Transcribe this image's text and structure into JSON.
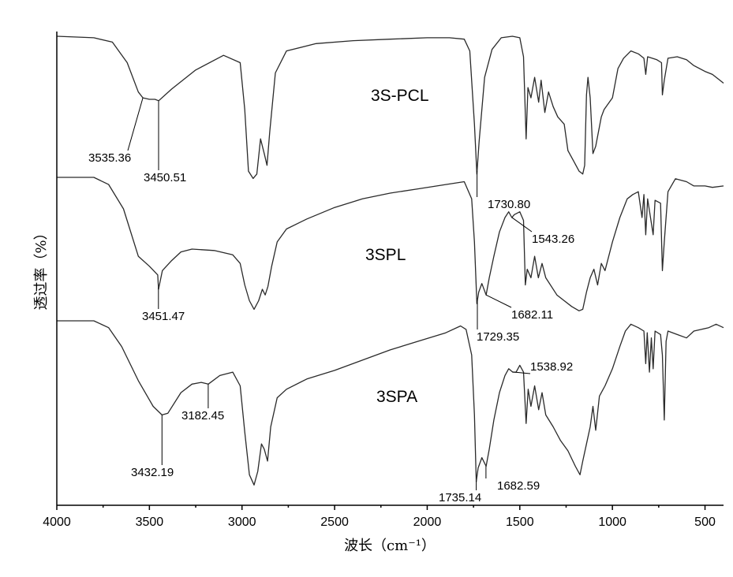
{
  "chart_data": {
    "type": "line",
    "xlabel": "波长（cm⁻¹）",
    "ylabel": "透过率（%）",
    "xlim": [
      4000,
      400
    ],
    "x_reversed": true,
    "x_ticks": [
      4000,
      3500,
      3000,
      2500,
      2000,
      1500,
      1000,
      500
    ],
    "grid": false,
    "legend": "none",
    "series": [
      {
        "name": "3S-PCL",
        "points": [
          [
            4000,
            100
          ],
          [
            3800,
            99
          ],
          [
            3700,
            96
          ],
          [
            3620,
            82
          ],
          [
            3560,
            62
          ],
          [
            3535,
            58
          ],
          [
            3500,
            57
          ],
          [
            3470,
            57
          ],
          [
            3450,
            56
          ],
          [
            3380,
            64
          ],
          [
            3250,
            77
          ],
          [
            3100,
            87
          ],
          [
            3010,
            82
          ],
          [
            2985,
            50
          ],
          [
            2965,
            8
          ],
          [
            2940,
            3
          ],
          [
            2920,
            6
          ],
          [
            2900,
            30
          ],
          [
            2880,
            20
          ],
          [
            2865,
            12
          ],
          [
            2850,
            35
          ],
          [
            2820,
            75
          ],
          [
            2760,
            90
          ],
          [
            2600,
            95
          ],
          [
            2400,
            97
          ],
          [
            2200,
            98
          ],
          [
            2000,
            99
          ],
          [
            1880,
            99
          ],
          [
            1800,
            98
          ],
          [
            1770,
            90
          ],
          [
            1745,
            40
          ],
          [
            1732,
            6
          ],
          [
            1720,
            28
          ],
          [
            1690,
            72
          ],
          [
            1650,
            91
          ],
          [
            1600,
            99
          ],
          [
            1540,
            100
          ],
          [
            1500,
            99
          ],
          [
            1480,
            86
          ],
          [
            1466,
            30
          ],
          [
            1456,
            65
          ],
          [
            1440,
            58
          ],
          [
            1420,
            72
          ],
          [
            1398,
            55
          ],
          [
            1385,
            70
          ],
          [
            1365,
            48
          ],
          [
            1345,
            62
          ],
          [
            1320,
            52
          ],
          [
            1295,
            45
          ],
          [
            1260,
            40
          ],
          [
            1240,
            22
          ],
          [
            1210,
            15
          ],
          [
            1180,
            8
          ],
          [
            1160,
            6
          ],
          [
            1150,
            12
          ],
          [
            1140,
            60
          ],
          [
            1132,
            72
          ],
          [
            1120,
            58
          ],
          [
            1105,
            20
          ],
          [
            1090,
            25
          ],
          [
            1060,
            45
          ],
          [
            1045,
            50
          ],
          [
            1000,
            58
          ],
          [
            970,
            78
          ],
          [
            940,
            85
          ],
          [
            900,
            90
          ],
          [
            860,
            88
          ],
          [
            830,
            85
          ],
          [
            820,
            74
          ],
          [
            810,
            86
          ],
          [
            760,
            84
          ],
          [
            735,
            82
          ],
          [
            730,
            60
          ],
          [
            720,
            70
          ],
          [
            700,
            85
          ],
          [
            650,
            86
          ],
          [
            600,
            84
          ],
          [
            560,
            80
          ],
          [
            500,
            76
          ],
          [
            460,
            74
          ],
          [
            420,
            70
          ],
          [
            400,
            68
          ]
        ]
      },
      {
        "name": "3SPL",
        "points": [
          [
            4000,
            100
          ],
          [
            3800,
            100
          ],
          [
            3720,
            95
          ],
          [
            3640,
            78
          ],
          [
            3560,
            45
          ],
          [
            3500,
            38
          ],
          [
            3455,
            32
          ],
          [
            3451,
            22
          ],
          [
            3430,
            35
          ],
          [
            3380,
            42
          ],
          [
            3330,
            48
          ],
          [
            3270,
            50
          ],
          [
            3150,
            49
          ],
          [
            3050,
            46
          ],
          [
            3010,
            40
          ],
          [
            2985,
            25
          ],
          [
            2960,
            14
          ],
          [
            2935,
            8
          ],
          [
            2910,
            14
          ],
          [
            2890,
            22
          ],
          [
            2875,
            18
          ],
          [
            2860,
            24
          ],
          [
            2840,
            38
          ],
          [
            2810,
            55
          ],
          [
            2760,
            64
          ],
          [
            2650,
            71
          ],
          [
            2500,
            79
          ],
          [
            2350,
            85
          ],
          [
            2200,
            89
          ],
          [
            2050,
            92
          ],
          [
            1900,
            95
          ],
          [
            1800,
            97
          ],
          [
            1760,
            85
          ],
          [
            1745,
            55
          ],
          [
            1732,
            12
          ],
          [
            1722,
            20
          ],
          [
            1705,
            26
          ],
          [
            1682,
            18
          ],
          [
            1665,
            30
          ],
          [
            1640,
            45
          ],
          [
            1610,
            62
          ],
          [
            1580,
            72
          ],
          [
            1560,
            76
          ],
          [
            1543,
            72
          ],
          [
            1530,
            74
          ],
          [
            1500,
            76
          ],
          [
            1480,
            70
          ],
          [
            1470,
            25
          ],
          [
            1460,
            36
          ],
          [
            1440,
            30
          ],
          [
            1420,
            45
          ],
          [
            1400,
            30
          ],
          [
            1380,
            40
          ],
          [
            1360,
            30
          ],
          [
            1300,
            18
          ],
          [
            1260,
            14
          ],
          [
            1220,
            10
          ],
          [
            1180,
            7
          ],
          [
            1160,
            8
          ],
          [
            1140,
            20
          ],
          [
            1120,
            30
          ],
          [
            1100,
            36
          ],
          [
            1080,
            25
          ],
          [
            1060,
            40
          ],
          [
            1040,
            35
          ],
          [
            1000,
            55
          ],
          [
            960,
            72
          ],
          [
            920,
            85
          ],
          [
            890,
            88
          ],
          [
            860,
            90
          ],
          [
            840,
            72
          ],
          [
            830,
            88
          ],
          [
            820,
            60
          ],
          [
            810,
            85
          ],
          [
            780,
            60
          ],
          [
            770,
            84
          ],
          [
            740,
            82
          ],
          [
            730,
            35
          ],
          [
            720,
            55
          ],
          [
            700,
            90
          ],
          [
            660,
            99
          ],
          [
            600,
            97
          ],
          [
            560,
            94
          ],
          [
            500,
            94
          ],
          [
            460,
            93
          ],
          [
            400,
            94
          ]
        ]
      },
      {
        "name": "3SPA",
        "points": [
          [
            4000,
            100
          ],
          [
            3800,
            100
          ],
          [
            3720,
            96
          ],
          [
            3650,
            85
          ],
          [
            3560,
            65
          ],
          [
            3480,
            50
          ],
          [
            3432,
            45
          ],
          [
            3400,
            46
          ],
          [
            3330,
            58
          ],
          [
            3270,
            63
          ],
          [
            3220,
            64
          ],
          [
            3182,
            63
          ],
          [
            3120,
            68
          ],
          [
            3050,
            70
          ],
          [
            3010,
            62
          ],
          [
            2985,
            35
          ],
          [
            2960,
            10
          ],
          [
            2935,
            4
          ],
          [
            2915,
            12
          ],
          [
            2895,
            28
          ],
          [
            2880,
            25
          ],
          [
            2862,
            18
          ],
          [
            2845,
            38
          ],
          [
            2810,
            55
          ],
          [
            2760,
            60
          ],
          [
            2650,
            66
          ],
          [
            2500,
            71
          ],
          [
            2350,
            77
          ],
          [
            2200,
            83
          ],
          [
            2050,
            88
          ],
          [
            1900,
            93
          ],
          [
            1820,
            97
          ],
          [
            1790,
            95
          ],
          [
            1760,
            80
          ],
          [
            1745,
            45
          ],
          [
            1735,
            6
          ],
          [
            1725,
            14
          ],
          [
            1705,
            20
          ],
          [
            1682,
            15
          ],
          [
            1665,
            25
          ],
          [
            1640,
            42
          ],
          [
            1610,
            58
          ],
          [
            1580,
            68
          ],
          [
            1560,
            72
          ],
          [
            1538,
            70
          ],
          [
            1520,
            70
          ],
          [
            1500,
            74
          ],
          [
            1480,
            70
          ],
          [
            1466,
            40
          ],
          [
            1455,
            60
          ],
          [
            1440,
            50
          ],
          [
            1420,
            62
          ],
          [
            1398,
            48
          ],
          [
            1380,
            58
          ],
          [
            1360,
            45
          ],
          [
            1320,
            38
          ],
          [
            1280,
            30
          ],
          [
            1240,
            24
          ],
          [
            1200,
            15
          ],
          [
            1175,
            10
          ],
          [
            1160,
            18
          ],
          [
            1140,
            28
          ],
          [
            1120,
            38
          ],
          [
            1105,
            50
          ],
          [
            1090,
            36
          ],
          [
            1070,
            56
          ],
          [
            1040,
            62
          ],
          [
            1000,
            72
          ],
          [
            960,
            85
          ],
          [
            930,
            94
          ],
          [
            900,
            98
          ],
          [
            860,
            96
          ],
          [
            830,
            94
          ],
          [
            820,
            75
          ],
          [
            812,
            93
          ],
          [
            800,
            70
          ],
          [
            790,
            90
          ],
          [
            780,
            72
          ],
          [
            770,
            94
          ],
          [
            740,
            92
          ],
          [
            730,
            80
          ],
          [
            720,
            42
          ],
          [
            710,
            88
          ],
          [
            700,
            94
          ],
          [
            650,
            92
          ],
          [
            600,
            90
          ],
          [
            560,
            94
          ],
          [
            520,
            95
          ],
          [
            480,
            96
          ],
          [
            440,
            98
          ],
          [
            400,
            96
          ]
        ]
      }
    ],
    "annotations": [
      {
        "series": "3S-PCL",
        "text": "3535.36",
        "x": 3535.36
      },
      {
        "series": "3S-PCL",
        "text": "3450.51",
        "x": 3450.51
      },
      {
        "series": "3S-PCL",
        "text": "1730.80",
        "x": 1730.8
      },
      {
        "series": "3SPL",
        "text": "3451.47",
        "x": 3451.47
      },
      {
        "series": "3SPL",
        "text": "1543.26",
        "x": 1543.26
      },
      {
        "series": "3SPL",
        "text": "1682.11",
        "x": 1682.11
      },
      {
        "series": "3SPL",
        "text": "1729.35",
        "x": 1729.35
      },
      {
        "series": "3SPA",
        "text": "3182.45",
        "x": 3182.45
      },
      {
        "series": "3SPA",
        "text": "3432.19",
        "x": 3432.19
      },
      {
        "series": "3SPA",
        "text": "1538.92",
        "x": 1538.92
      },
      {
        "series": "3SPA",
        "text": "1735.14",
        "x": 1735.14
      },
      {
        "series": "3SPA",
        "text": "1682.59",
        "x": 1682.59
      }
    ]
  }
}
